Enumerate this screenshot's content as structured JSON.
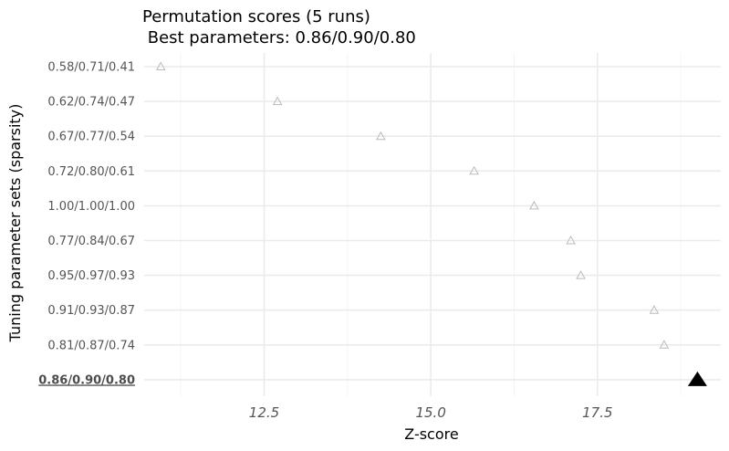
{
  "chart_data": {
    "type": "scatter",
    "title": "Permutation scores (5 runs)",
    "subtitle": " Best parameters: 0.86/0.90/0.80",
    "xlabel": "Z-score",
    "ylabel": "Tuning parameter sets (sparsity)",
    "xlim": [
      10.7,
      19.35
    ],
    "xticks": [
      12.5,
      15.0,
      17.5
    ],
    "xtick_labels": [
      "12.5",
      "15.0",
      "17.5"
    ],
    "grid": true,
    "legend": "none",
    "categories": [
      "0.58/0.71/0.41",
      "0.62/0.74/0.47",
      "0.67/0.77/0.54",
      "0.72/0.80/0.61",
      "1.00/1.00/1.00",
      "0.77/0.84/0.67",
      "0.95/0.97/0.93",
      "0.91/0.93/0.87",
      "0.81/0.87/0.74",
      "0.86/0.90/0.80"
    ],
    "values": [
      10.95,
      12.7,
      14.25,
      15.65,
      16.55,
      17.1,
      17.25,
      18.35,
      18.5,
      19.0
    ],
    "best_category": "0.86/0.90/0.80",
    "marker": "triangle",
    "colors": {
      "points": "#bbbbbb",
      "best": "#000000",
      "grid": "#ebebeb",
      "tick_text": "#555555"
    }
  }
}
